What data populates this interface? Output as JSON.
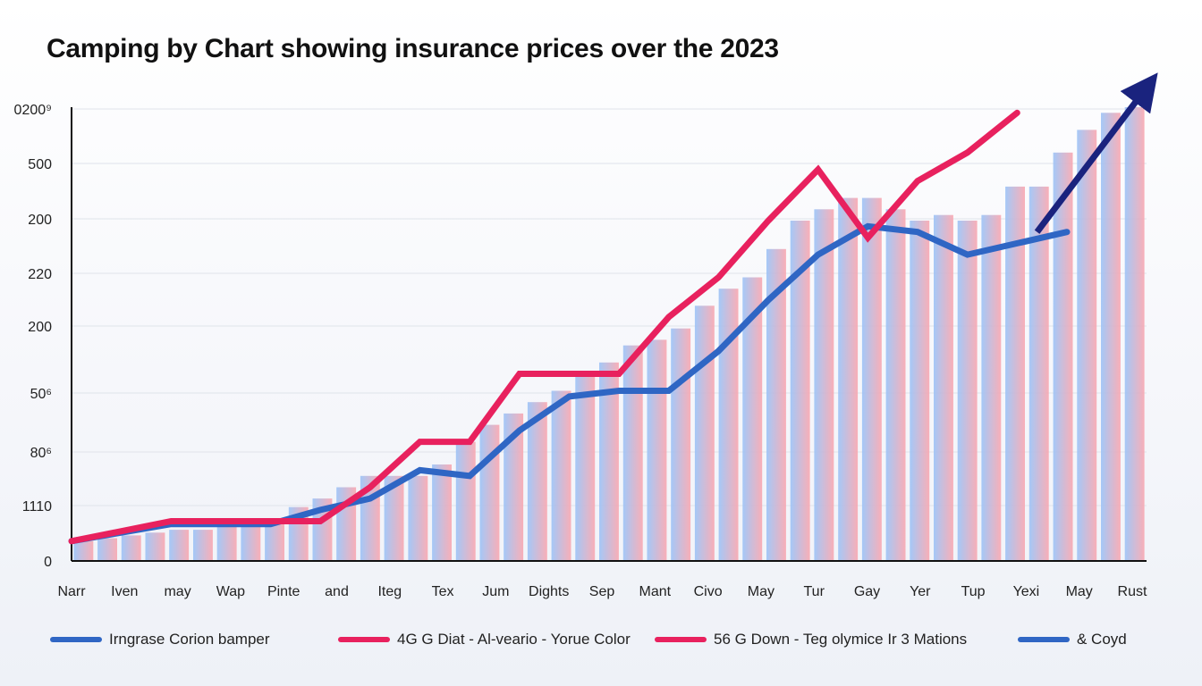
{
  "title": "Camping by Chart showing insurance prices over the 2023",
  "chart_data": {
    "type": "bar",
    "title": "Camping by Chart showing insurance prices over the 2023",
    "xlabel": "",
    "ylabel": "",
    "y_tick_labels": [
      "0",
      "1110",
      "80⁶",
      "50⁶",
      "200",
      "220",
      "200",
      "500",
      "0200⁹"
    ],
    "x_tick_labels": [
      "Narr",
      "Iven",
      "may",
      "Wap",
      "Pinte",
      "and",
      "Iteg",
      "Tex",
      "Jum",
      "Dights",
      "Sep",
      "Mant",
      "Civo",
      "May",
      "Tur",
      "Gay",
      "Yer",
      "Tup",
      "Yexi",
      "May",
      "Rust"
    ],
    "ylim": [
      0,
      8
    ],
    "grid": true,
    "bars": {
      "values": [
        0.35,
        0.4,
        0.45,
        0.5,
        0.55,
        0.55,
        0.6,
        0.6,
        0.75,
        0.95,
        1.1,
        1.3,
        1.5,
        1.5,
        1.5,
        1.7,
        2.1,
        2.4,
        2.6,
        2.8,
        3.0,
        3.3,
        3.5,
        3.8,
        3.9,
        4.1,
        4.5,
        4.8,
        5.0,
        5.5,
        6.0,
        6.2,
        6.4,
        6.4,
        6.2,
        6.0,
        6.1,
        6.0,
        6.1,
        6.6,
        6.6,
        7.2,
        7.6,
        7.9,
        8.0
      ],
      "color_start": "#9cc3f7",
      "color_end": "#f9a7b0"
    },
    "series": [
      {
        "name": "Irngrase Corion bamper",
        "color": "#2f66c4",
        "values": [
          [
            0,
            0.35
          ],
          [
            1,
            0.65
          ],
          [
            2,
            0.65
          ],
          [
            2.5,
            0.9
          ],
          [
            3,
            1.1
          ],
          [
            3.5,
            1.6
          ],
          [
            4,
            1.5
          ],
          [
            4.5,
            2.3
          ],
          [
            5,
            2.9
          ],
          [
            5.5,
            3.0
          ],
          [
            6,
            3.0
          ],
          [
            6.5,
            3.7
          ],
          [
            7,
            4.6
          ],
          [
            7.5,
            5.4
          ],
          [
            8,
            5.9
          ],
          [
            8.5,
            5.8
          ],
          [
            9,
            5.4
          ],
          [
            9.5,
            5.6
          ],
          [
            10,
            5.8
          ]
        ]
      },
      {
        "name": "4G G Diat - Al-veario - Yorue Color",
        "color": "#e8215e",
        "values": [
          [
            0,
            0.35
          ],
          [
            1,
            0.7
          ],
          [
            2,
            0.7
          ],
          [
            2.5,
            0.7
          ],
          [
            3,
            1.3
          ],
          [
            3.5,
            2.1
          ],
          [
            4,
            2.1
          ],
          [
            4.5,
            3.3
          ],
          [
            5,
            3.3
          ],
          [
            5.5,
            3.3
          ],
          [
            6,
            4.3
          ],
          [
            6.5,
            5.0
          ],
          [
            7,
            6.0
          ],
          [
            7.5,
            6.9
          ],
          [
            8,
            5.7
          ],
          [
            8.5,
            6.7
          ],
          [
            9,
            7.2
          ],
          [
            9.5,
            7.9
          ]
        ]
      },
      {
        "name": "56 G Down - Teg olymice Ir 3 Mations",
        "color": "#e8215e"
      },
      {
        "name": "& Coyd",
        "color": "#2f66c4"
      }
    ],
    "trend_arrow": {
      "color": "#1a237e",
      "from": [
        9.7,
        5.8
      ],
      "to": [
        10.8,
        8.5
      ]
    },
    "legend_position": "bottom"
  },
  "legend": [
    {
      "label": "Irngrase Corion bamper",
      "color": "#2f66c4"
    },
    {
      "label": "4G G Diat - Al-veario - Yorue Color",
      "color": "#e8215e"
    },
    {
      "label": "56 G Down - Teg olymice Ir 3 Mations",
      "color": "#e8215e"
    },
    {
      "label": "& Coyd",
      "color": "#2f66c4"
    }
  ]
}
